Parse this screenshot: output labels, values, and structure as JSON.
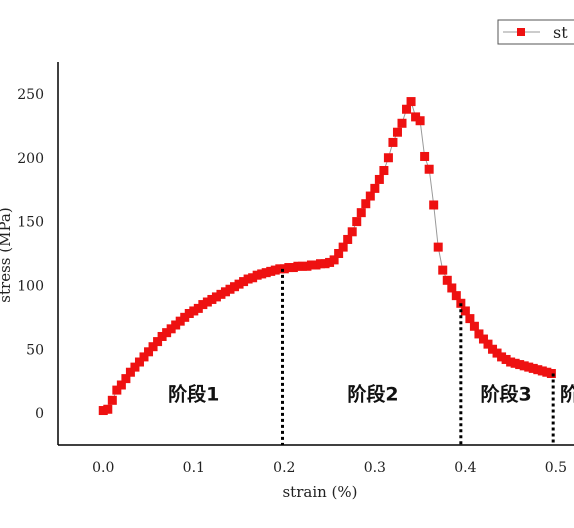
{
  "chart_data": {
    "type": "scatter",
    "title": "",
    "xlabel": "strain (%)",
    "ylabel": "stress (MPa)",
    "xlim": [
      -0.05,
      0.52
    ],
    "ylim": [
      -25,
      275
    ],
    "x_ticks": [
      0.0,
      0.1,
      0.2,
      0.3,
      0.4,
      0.5
    ],
    "x_tick_labels": [
      "0.0",
      "0.1",
      "0.2",
      "0.3",
      "0.4",
      "0.5"
    ],
    "y_ticks": [
      0,
      50,
      100,
      150,
      200,
      250
    ],
    "y_tick_labels": [
      "0",
      "50",
      "100",
      "150",
      "200",
      "250"
    ],
    "grid": false,
    "legend_position": "top-right",
    "series": [
      {
        "name": "st",
        "color": "#ee1111",
        "marker": "square",
        "line_color": "#999999",
        "x": [
          0.0,
          0.005,
          0.01,
          0.015,
          0.02,
          0.025,
          0.03,
          0.035,
          0.04,
          0.045,
          0.05,
          0.055,
          0.06,
          0.065,
          0.07,
          0.075,
          0.08,
          0.085,
          0.09,
          0.095,
          0.1,
          0.105,
          0.11,
          0.115,
          0.12,
          0.125,
          0.13,
          0.135,
          0.14,
          0.145,
          0.15,
          0.155,
          0.16,
          0.165,
          0.17,
          0.175,
          0.18,
          0.185,
          0.19,
          0.195,
          0.2,
          0.205,
          0.21,
          0.215,
          0.22,
          0.225,
          0.23,
          0.235,
          0.24,
          0.245,
          0.25,
          0.255,
          0.26,
          0.265,
          0.27,
          0.275,
          0.28,
          0.285,
          0.29,
          0.295,
          0.3,
          0.305,
          0.31,
          0.315,
          0.32,
          0.325,
          0.33,
          0.335,
          0.34,
          0.345,
          0.35,
          0.355,
          0.36,
          0.365,
          0.37,
          0.375,
          0.38,
          0.385,
          0.39,
          0.395,
          0.4,
          0.405,
          0.41,
          0.415,
          0.42,
          0.425,
          0.43,
          0.435,
          0.44,
          0.445,
          0.45,
          0.455,
          0.46,
          0.465,
          0.47,
          0.475,
          0.48,
          0.485,
          0.49,
          0.495
        ],
        "y": [
          2,
          3,
          10,
          18,
          22,
          27,
          32,
          36,
          40,
          44,
          48,
          52,
          56,
          60,
          63,
          66,
          69,
          72,
          75,
          78,
          80,
          82,
          85,
          87,
          89,
          91,
          93,
          95,
          97,
          99,
          101,
          103,
          105,
          106,
          108,
          109,
          110,
          111,
          112,
          113,
          113,
          114,
          114,
          115,
          115,
          115,
          116,
          116,
          117,
          117,
          118,
          120,
          125,
          130,
          136,
          142,
          150,
          157,
          164,
          170,
          176,
          183,
          190,
          200,
          212,
          220,
          227,
          238,
          244,
          232,
          229,
          201,
          191,
          163,
          130,
          112,
          104,
          98,
          92,
          86,
          80,
          74,
          68,
          62,
          58,
          54,
          50,
          47,
          44,
          42,
          40,
          39,
          38,
          37,
          36,
          35,
          34,
          33,
          32,
          31
        ]
      }
    ],
    "stage_boundaries": [
      0.198,
      0.395,
      0.497
    ],
    "stage_labels": [
      {
        "text": "阶段1",
        "x": 0.1,
        "y": 5
      },
      {
        "text": "阶段2",
        "x": 0.298,
        "y": 5
      },
      {
        "text": "阶段3",
        "x": 0.445,
        "y": 5
      },
      {
        "text": "阶",
        "x": 0.515,
        "y": 5
      }
    ]
  }
}
